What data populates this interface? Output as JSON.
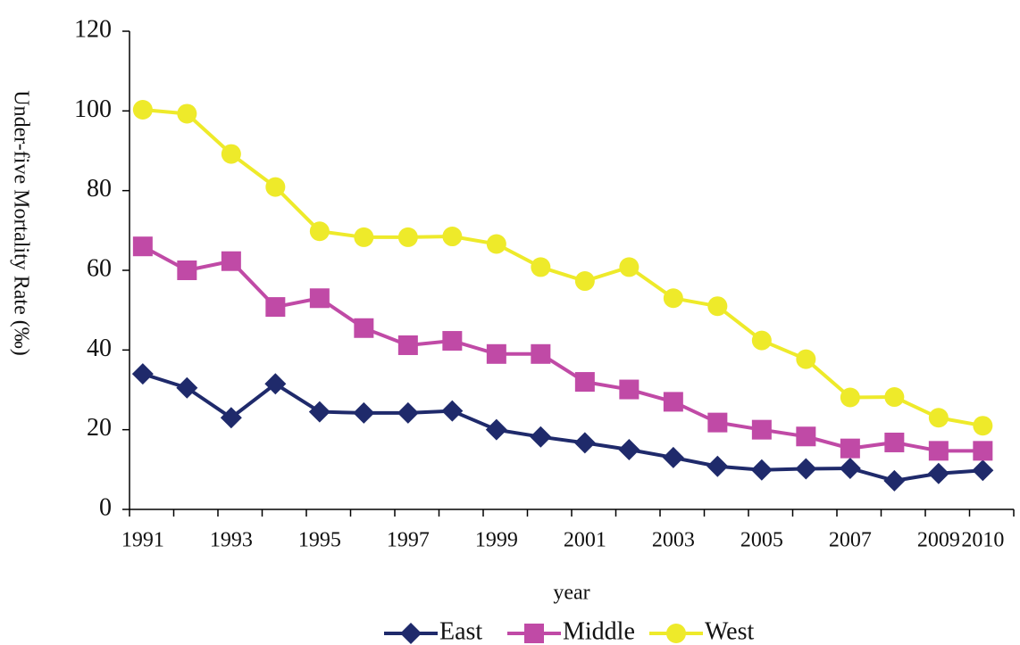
{
  "chart_data": {
    "type": "line",
    "y_label": "Under-five Mortality Rate (‰)",
    "x_label": "year",
    "categories": [
      "1991",
      null,
      "1993",
      null,
      "1995",
      null,
      "1997",
      null,
      "1999",
      null,
      "2001",
      null,
      "2003",
      null,
      "2005",
      null,
      "2007",
      null,
      "2009",
      "2010"
    ],
    "series": [
      {
        "name": "East",
        "color": "#1f2a6b",
        "marker": "diamond",
        "values": [
          34,
          30.5,
          23,
          31.5,
          24.5,
          24.2,
          24.2,
          24.7,
          20,
          18.2,
          16.7,
          15,
          13,
          10.8,
          9.9,
          10.2,
          10.3,
          7.2,
          9,
          9.8
        ]
      },
      {
        "name": "Middle",
        "color": "#c04aa6",
        "marker": "square",
        "values": [
          66,
          60,
          62.3,
          50.8,
          53,
          45.5,
          41.2,
          42.3,
          39,
          39,
          32,
          30.1,
          27,
          21.8,
          20,
          18.3,
          15.3,
          16.8,
          14.7,
          14.7
        ]
      },
      {
        "name": "West",
        "color": "#eeea2a",
        "marker": "circle",
        "values": [
          100.3,
          99.3,
          89.2,
          80.9,
          69.8,
          68.3,
          68.3,
          68.5,
          66.6,
          60.8,
          57.3,
          60.8,
          53,
          51,
          42.4,
          37.7,
          28.1,
          28.2,
          23,
          21
        ]
      }
    ],
    "ylim": [
      0,
      120
    ],
    "yticks": [
      0,
      20,
      40,
      60,
      80,
      100,
      120
    ],
    "legend": "bottom"
  }
}
